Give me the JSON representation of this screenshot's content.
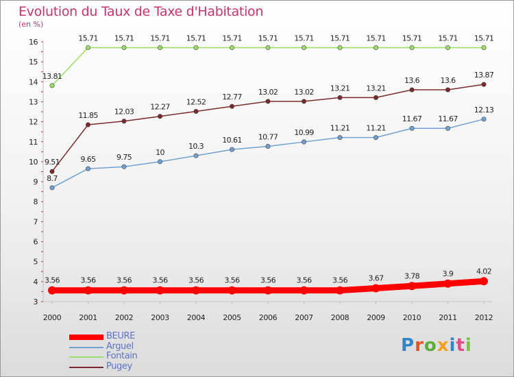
{
  "chart_data": {
    "type": "line",
    "title": "Evolution du Taux de Taxe d'Habitation",
    "subtitle": "(en %)",
    "categories": [
      "2000",
      "2001",
      "2002",
      "2003",
      "2004",
      "2005",
      "2006",
      "2007",
      "2008",
      "2009",
      "2010",
      "2011",
      "2012"
    ],
    "ylim": [
      3,
      16
    ],
    "yticks": [
      "3",
      "4",
      "5",
      "6",
      "7",
      "8",
      "9",
      "10",
      "11",
      "12",
      "13",
      "14",
      "15",
      "16"
    ],
    "grid": false,
    "legend_position": "bottom-left",
    "series": [
      {
        "name": "BEURE",
        "color": "#ff0000",
        "values": [
          3.56,
          3.56,
          3.56,
          3.56,
          3.56,
          3.56,
          3.56,
          3.56,
          3.56,
          3.67,
          3.78,
          3.9,
          4.02
        ],
        "labels": [
          "3.56",
          "3.56",
          "3.56",
          "3.56",
          "3.56",
          "3.56",
          "3.56",
          "3.56",
          "3.56",
          "3.67",
          "3.78",
          "3.9",
          "4.02"
        ]
      },
      {
        "name": "Arguel",
        "color": "#6fa0d0",
        "values": [
          8.7,
          9.65,
          9.75,
          10,
          10.3,
          10.61,
          10.77,
          10.99,
          11.21,
          11.21,
          11.67,
          11.67,
          12.13
        ],
        "labels": [
          "8.7",
          "9.65",
          "9.75",
          "10",
          "10.3",
          "10.61",
          "10.77",
          "10.99",
          "11.21",
          "11.21",
          "11.67",
          "11.67",
          "12.13"
        ]
      },
      {
        "name": "Fontain",
        "color": "#99dd66",
        "values": [
          13.81,
          15.71,
          15.71,
          15.71,
          15.71,
          15.71,
          15.71,
          15.71,
          15.71,
          15.71,
          15.71,
          15.71,
          15.71
        ],
        "labels": [
          "13.81",
          "15.71",
          "15.71",
          "15.71",
          "15.71",
          "15.71",
          "15.71",
          "15.71",
          "15.71",
          "15.71",
          "15.71",
          "15.71",
          "15.71"
        ]
      },
      {
        "name": "Pugey",
        "color": "#7a2a2a",
        "values": [
          9.51,
          11.85,
          12.03,
          12.27,
          12.52,
          12.77,
          13.02,
          13.02,
          13.21,
          13.21,
          13.6,
          13.6,
          13.87
        ],
        "labels": [
          "9.51",
          "11.85",
          "12.03",
          "12.27",
          "12.52",
          "12.77",
          "13.02",
          "13.02",
          "13.21",
          "13.21",
          "13.6",
          "13.6",
          "13.87"
        ]
      }
    ]
  },
  "brand": {
    "text": "Proxiti",
    "colors": [
      "#2f86c9",
      "#e0542b",
      "#5cae3a",
      "#f0a020",
      "#2f86c9",
      "#e04c8a",
      "#7cc242"
    ]
  }
}
